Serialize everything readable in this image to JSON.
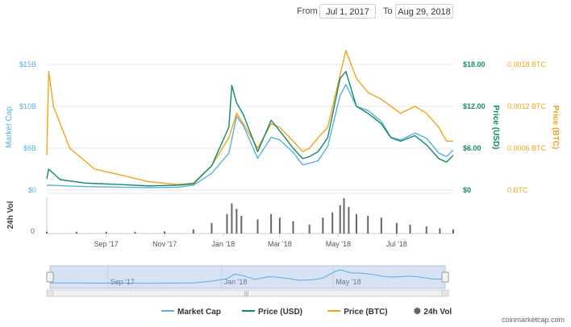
{
  "date_range": {
    "from_label": "From",
    "from_value": "Jul 1, 2017",
    "to_label": "To",
    "to_value": "Aug 29, 2018"
  },
  "footer": {
    "credit": "coinmarketcap.com"
  },
  "colors": {
    "market_cap": "#5aaee0",
    "price_usd": "#0f8a68",
    "price_btc": "#f5a218",
    "volume": "#666666",
    "navigator_bg": "#d7e2f4"
  },
  "chart_data": {
    "type": "line",
    "x_type": "date",
    "x_range": [
      "2017-07-01",
      "2018-08-29"
    ],
    "x_ticks": [
      "Sep '17",
      "Nov '17",
      "Jan '18",
      "Mar '18",
      "May '18",
      "Jul '18"
    ],
    "x_tick_dates": [
      "2017-09-01",
      "2017-11-01",
      "2018-01-01",
      "2018-03-01",
      "2018-05-01",
      "2018-07-01"
    ],
    "axes": {
      "market_cap": {
        "label": "Market Cap",
        "ticks": [
          "$0",
          "$5B",
          "$10B",
          "$15B"
        ],
        "ylim": [
          0,
          15000000000
        ]
      },
      "price_usd": {
        "label": "Price (USD)",
        "ticks": [
          "$0",
          "$6.00",
          "$12.00",
          "$18.00"
        ],
        "ylim": [
          0,
          18
        ]
      },
      "price_btc": {
        "label": "Price (BTC)",
        "ticks": [
          "0 BTC",
          "0.0006 BTC",
          "0.0012 BTC",
          "0.0018 BTC"
        ],
        "ylim": [
          0,
          0.0018
        ]
      },
      "volume": {
        "label": "24h Vol",
        "ticks": [
          "0"
        ]
      }
    },
    "legend": {
      "position": "bottom",
      "items": [
        {
          "name": "Market Cap",
          "color": "#5aaee0",
          "marker": "line"
        },
        {
          "name": "Price (USD)",
          "color": "#0f8a68",
          "marker": "line"
        },
        {
          "name": "Price (BTC)",
          "color": "#f5a218",
          "marker": "line"
        },
        {
          "name": "24h Vol",
          "color": "#666666",
          "marker": "circle"
        }
      ]
    },
    "navigator_labels": [
      "Sep '17",
      "Jan '18",
      "May '18"
    ],
    "series": [
      {
        "name": "Market Cap",
        "axis": "market_cap",
        "x": [
          "2017-07-01",
          "2017-07-03",
          "2017-07-20",
          "2017-08-15",
          "2017-09-15",
          "2017-10-15",
          "2017-11-15",
          "2017-12-01",
          "2017-12-20",
          "2018-01-07",
          "2018-01-15",
          "2018-01-22",
          "2018-02-06",
          "2018-02-20",
          "2018-03-01",
          "2018-03-15",
          "2018-03-25",
          "2018-04-01",
          "2018-04-10",
          "2018-04-20",
          "2018-05-03",
          "2018-05-09",
          "2018-05-20",
          "2018-06-01",
          "2018-06-15",
          "2018-06-25",
          "2018-07-05",
          "2018-07-20",
          "2018-08-01",
          "2018-08-14",
          "2018-08-22",
          "2018-08-29"
        ],
        "y": [
          500000000.0,
          600000000.0,
          500000000.0,
          400000000.0,
          350000000.0,
          300000000.0,
          350000000.0,
          600000000.0,
          2000000000.0,
          4400000000.0,
          8800000000.0,
          7700000000.0,
          3800000000.0,
          6300000000.0,
          6000000000.0,
          4500000000.0,
          3000000000.0,
          3200000000.0,
          3500000000.0,
          5200000000.0,
          11300000000.0,
          12600000000.0,
          10000000000.0,
          9500000000.0,
          8200000000.0,
          6300000000.0,
          6000000000.0,
          6800000000.0,
          6200000000.0,
          4400000000.0,
          4000000000.0,
          4800000000.0
        ]
      },
      {
        "name": "Price (USD)",
        "axis": "price_usd",
        "x": [
          "2017-07-01",
          "2017-07-03",
          "2017-07-15",
          "2017-08-10",
          "2017-09-15",
          "2017-10-15",
          "2017-11-15",
          "2017-12-01",
          "2017-12-20",
          "2018-01-07",
          "2018-01-10",
          "2018-01-15",
          "2018-01-22",
          "2018-02-06",
          "2018-02-20",
          "2018-03-01",
          "2018-03-15",
          "2018-03-25",
          "2018-04-01",
          "2018-04-10",
          "2018-04-20",
          "2018-05-03",
          "2018-05-09",
          "2018-05-20",
          "2018-06-01",
          "2018-06-15",
          "2018-06-25",
          "2018-07-05",
          "2018-07-20",
          "2018-08-01",
          "2018-08-14",
          "2018-08-22",
          "2018-08-29"
        ],
        "y": [
          1.6,
          3.0,
          1.5,
          1.0,
          0.8,
          0.6,
          0.7,
          0.9,
          3.5,
          9.0,
          15.0,
          12.5,
          10.8,
          5.5,
          10.0,
          8.5,
          6.0,
          4.5,
          4.8,
          5.5,
          7.5,
          16.0,
          17.0,
          12.0,
          11.0,
          9.5,
          7.5,
          7.0,
          7.8,
          6.5,
          4.5,
          4.0,
          5.0
        ]
      },
      {
        "name": "Price (BTC)",
        "axis": "price_btc",
        "x": [
          "2017-07-01",
          "2017-07-03",
          "2017-07-08",
          "2017-07-25",
          "2017-08-20",
          "2017-09-15",
          "2017-10-15",
          "2017-11-15",
          "2017-12-01",
          "2017-12-20",
          "2018-01-07",
          "2018-01-15",
          "2018-01-22",
          "2018-02-06",
          "2018-02-20",
          "2018-03-01",
          "2018-03-15",
          "2018-03-25",
          "2018-04-01",
          "2018-04-10",
          "2018-04-20",
          "2018-05-03",
          "2018-05-09",
          "2018-05-20",
          "2018-06-01",
          "2018-06-15",
          "2018-06-25",
          "2018-07-05",
          "2018-07-20",
          "2018-08-01",
          "2018-08-14",
          "2018-08-22",
          "2018-08-29"
        ],
        "y": [
          0.0005,
          0.0017,
          0.0012,
          0.0006,
          0.0003,
          0.00022,
          0.00012,
          8e-05,
          0.0001,
          0.00035,
          0.00075,
          0.0011,
          0.00095,
          0.0006,
          0.00095,
          0.0009,
          0.0007,
          0.00055,
          0.0006,
          0.00075,
          0.0009,
          0.00165,
          0.002,
          0.0016,
          0.0014,
          0.0013,
          0.0012,
          0.0011,
          0.0012,
          0.0011,
          0.0009,
          0.0007,
          0.0007
        ]
      },
      {
        "name": "24h Vol",
        "x": [
          "2017-07-01",
          "2017-08-01",
          "2017-09-01",
          "2017-10-01",
          "2017-11-01",
          "2017-12-01",
          "2017-12-20",
          "2018-01-05",
          "2018-01-10",
          "2018-01-15",
          "2018-01-20",
          "2018-02-06",
          "2018-02-20",
          "2018-03-01",
          "2018-03-15",
          "2018-04-01",
          "2018-04-15",
          "2018-04-25",
          "2018-05-03",
          "2018-05-07",
          "2018-05-12",
          "2018-05-20",
          "2018-06-01",
          "2018-06-15",
          "2018-07-01",
          "2018-07-15",
          "2018-08-01",
          "2018-08-15",
          "2018-08-29"
        ],
        "y": [
          0.05,
          0.05,
          0.05,
          0.05,
          0.06,
          0.12,
          0.3,
          0.55,
          0.85,
          0.7,
          0.5,
          0.4,
          0.55,
          0.45,
          0.35,
          0.25,
          0.45,
          0.6,
          0.8,
          1.0,
          0.75,
          0.55,
          0.5,
          0.45,
          0.3,
          0.25,
          0.2,
          0.15,
          0.12
        ]
      }
    ]
  }
}
